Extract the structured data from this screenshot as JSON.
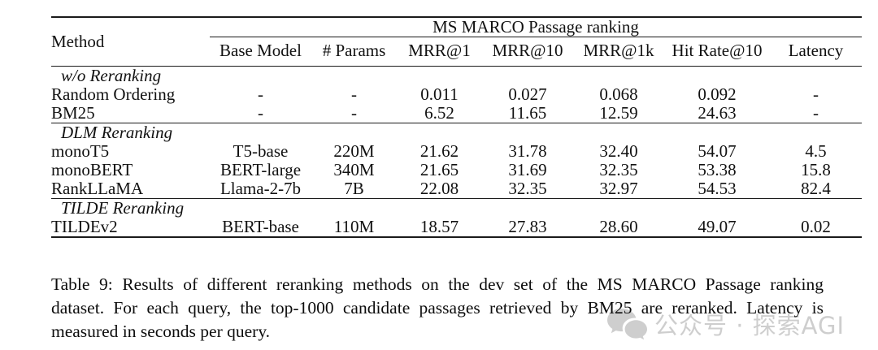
{
  "table": {
    "group_header": "MS MARCO Passage ranking",
    "method_header": "Method",
    "columns": [
      "Base Model",
      "# Params",
      "MRR@1",
      "MRR@10",
      "MRR@1k",
      "Hit Rate@10",
      "Latency"
    ],
    "sections": [
      {
        "label": "w/o Reranking",
        "rows": [
          {
            "method": "Random Ordering",
            "cells": [
              "-",
              "-",
              "0.011",
              "0.027",
              "0.068",
              "0.092",
              "-"
            ],
            "bold": []
          },
          {
            "method": "BM25",
            "cells": [
              "-",
              "-",
              "6.52",
              "11.65",
              "12.59",
              "24.63",
              "-"
            ],
            "bold": []
          }
        ]
      },
      {
        "label": "DLM Reranking",
        "rows": [
          {
            "method": "monoT5",
            "cells": [
              "T5-base",
              "220M",
              "21.62",
              "31.78",
              "32.40",
              "54.07",
              "4.5"
            ],
            "bold": [
              6
            ]
          },
          {
            "method": "monoBERT",
            "cells": [
              "BERT-large",
              "340M",
              "21.65",
              "31.69",
              "32.35",
              "53.38",
              "15.8"
            ],
            "bold": []
          },
          {
            "method": "RankLLaMA",
            "cells": [
              "Llama-2-7b",
              "7B",
              "22.08",
              "32.35",
              "32.97",
              "54.53",
              "82.4"
            ],
            "bold": [
              2,
              3,
              4,
              5
            ]
          }
        ]
      },
      {
        "label": "TILDE Reranking",
        "rows": [
          {
            "method": "TILDEv2",
            "cells": [
              "BERT-base",
              "110M",
              "18.57",
              "27.83",
              "28.60",
              "49.07",
              "0.02"
            ],
            "bold": [
              6
            ]
          }
        ]
      }
    ]
  },
  "caption": {
    "lines": [
      "Table 9:  Results of different reranking methods on the dev set of the MS MARCO Passage ranking",
      "dataset. For each query, the top-1000 candidate passages retrieved by BM25 are reranked. Latency is",
      "measured in seconds per query."
    ],
    "text": "Table 9: Results of different reranking methods on the dev set of the MS MARCO Passage ranking dataset. For each query, the top-1000 candidate passages retrieved by BM25 are reranked. Latency is measured in seconds per query."
  },
  "watermark": {
    "icon": "wechat-icon",
    "text": "公众号 · 探索AGI",
    "color": "#c3c3c3"
  }
}
